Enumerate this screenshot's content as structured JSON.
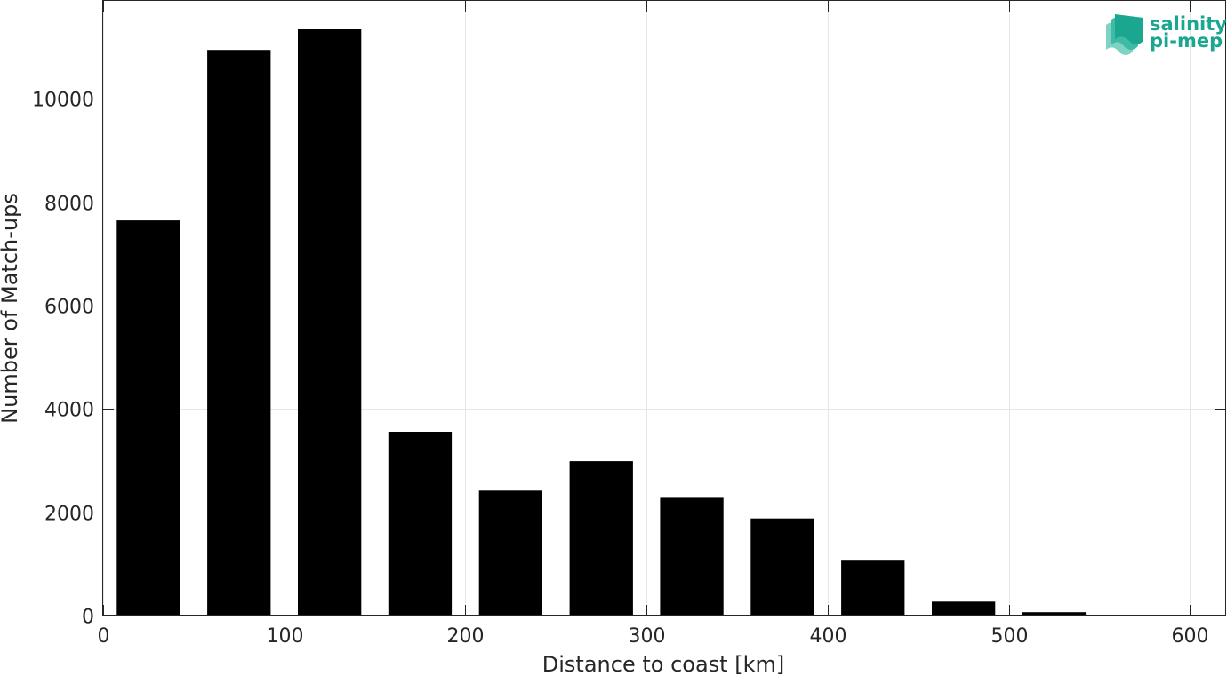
{
  "chart_data": {
    "type": "bar",
    "bin_width": 50,
    "x": [
      25,
      75,
      125,
      175,
      225,
      275,
      325,
      375,
      425,
      475,
      525,
      575
    ],
    "values": [
      7650,
      10950,
      11350,
      3560,
      2420,
      2990,
      2280,
      1880,
      1080,
      270,
      65,
      5
    ],
    "xlabel": "Distance to coast [km]",
    "ylabel": "Number of Match-ups",
    "xlim": [
      0,
      620
    ],
    "ylim": [
      0,
      11900
    ],
    "xticks": [
      0,
      100,
      200,
      300,
      400,
      500,
      600
    ],
    "yticks": [
      0,
      2000,
      4000,
      6000,
      8000,
      10000
    ],
    "grid": true,
    "bar_color": "#000000"
  },
  "logo": {
    "line1": "salinity",
    "line2": "pi-mep",
    "color": "#1aa68f"
  }
}
